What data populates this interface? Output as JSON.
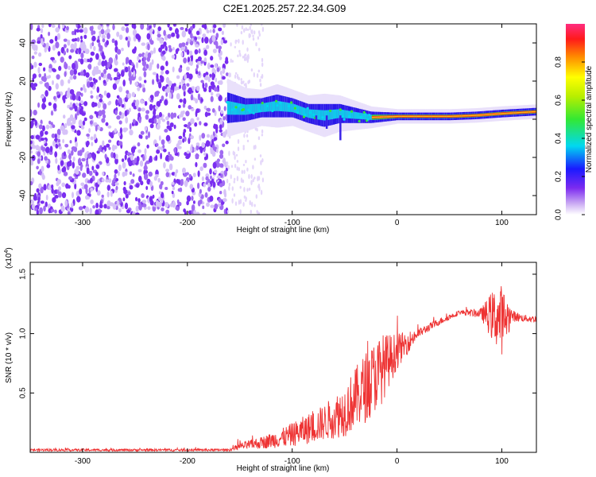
{
  "title": "C2E1.2025.257.22.34.G09",
  "chart_data": [
    {
      "type": "heatmap",
      "id": "spectrogram",
      "xlabel": "Height of straight line (km)",
      "ylabel": "Frequency (Hz)",
      "xlim": [
        -350,
        133
      ],
      "ylim": [
        -50,
        50
      ],
      "xticks": [
        -300,
        -200,
        -100,
        0,
        100
      ],
      "yticks": [
        -40,
        -20,
        0,
        20,
        40
      ],
      "noise_region": {
        "x_start": -350,
        "x_end": -162
      },
      "signal_band": {
        "x": [
          -162,
          -145,
          -130,
          -115,
          -100,
          -85,
          -70,
          -55,
          -40,
          -25,
          0,
          25,
          50,
          75,
          100,
          133
        ],
        "center_hz": [
          6,
          5,
          6,
          7,
          6,
          3,
          2,
          3,
          2,
          1,
          1.5,
          1.5,
          1.5,
          2,
          3,
          4
        ],
        "halfwidth_hz": [
          8,
          6,
          5,
          6,
          5,
          5,
          6,
          5,
          4,
          3,
          2,
          2,
          2,
          2,
          2,
          2
        ]
      },
      "colorbar": {
        "label": "Normalized spectral amplitude",
        "ticks": [
          "0.0",
          "0.2",
          "0.4",
          "0.6",
          "0.8"
        ],
        "tick_values": [
          0,
          0.2,
          0.4,
          0.6,
          0.8
        ],
        "range": [
          0,
          1
        ]
      }
    },
    {
      "type": "line",
      "id": "snr",
      "xlabel": "Height of straight line (km)",
      "ylabel": "SNR (10 * v/v)",
      "scale_label": "(x10",
      "scale_exp": "4",
      "scale_close": ")",
      "xlim": [
        -350,
        133
      ],
      "ylim": [
        0,
        1.6
      ],
      "xticks": [
        -300,
        -200,
        -100,
        0,
        100
      ],
      "yticks": [
        "0.5",
        "1.0",
        "1.5"
      ],
      "ytick_values": [
        0.5,
        1.0,
        1.5
      ],
      "color": "#ee3333",
      "envelope": {
        "x": [
          -350,
          -160,
          -150,
          -130,
          -110,
          -90,
          -70,
          -50,
          -30,
          -15,
          0,
          20,
          40,
          60,
          80,
          90,
          100,
          110,
          120,
          133
        ],
        "y": [
          0.02,
          0.02,
          0.05,
          0.08,
          0.12,
          0.18,
          0.25,
          0.35,
          0.55,
          0.7,
          0.85,
          1.0,
          1.1,
          1.18,
          1.17,
          1.15,
          1.12,
          1.15,
          1.13,
          1.12
        ],
        "noise": [
          0.01,
          0.01,
          0.03,
          0.05,
          0.08,
          0.12,
          0.15,
          0.22,
          0.3,
          0.3,
          0.15,
          0.04,
          0.03,
          0.02,
          0.04,
          0.2,
          0.3,
          0.05,
          0.03,
          0.03
        ]
      }
    }
  ]
}
